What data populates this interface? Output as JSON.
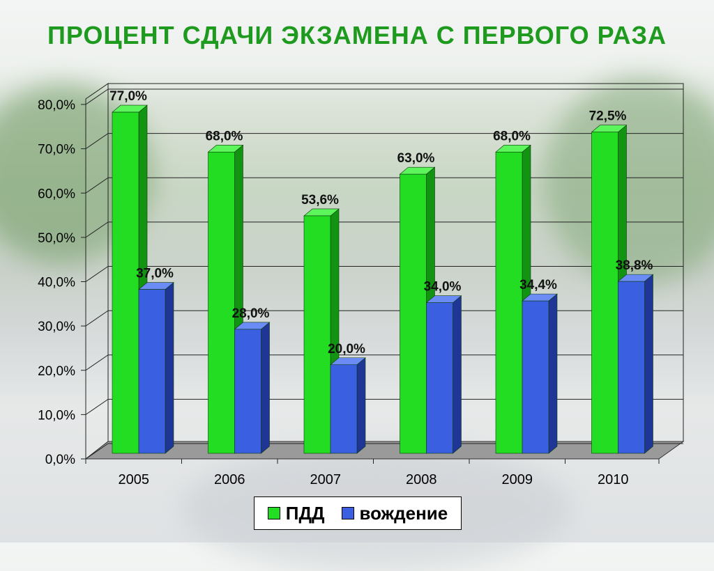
{
  "chart_data": {
    "type": "bar",
    "title": "ПРОЦЕНТ СДАЧИ ЭКЗАМЕНА С ПЕРВОГО РАЗА",
    "categories": [
      "2005",
      "2006",
      "2007",
      "2008",
      "2009",
      "2010"
    ],
    "series": [
      {
        "name": "ПДД",
        "values": [
          77.0,
          68.0,
          53.6,
          63.0,
          68.0,
          72.5
        ],
        "labels": [
          "77,0%",
          "68,0%",
          "53,6%",
          "63,0%",
          "68,0%",
          "72,5%"
        ],
        "color": "#22dd22"
      },
      {
        "name": "вождение",
        "values": [
          37.0,
          28.0,
          20.0,
          34.0,
          34.4,
          38.8
        ],
        "labels": [
          "37,0%",
          "28,0%",
          "20,0%",
          "34,0%",
          "34,4%",
          "38,8%"
        ],
        "color": "#3a5fe0"
      }
    ],
    "y_ticks": [
      "0,0%",
      "10,0%",
      "20,0%",
      "30,0%",
      "40,0%",
      "50,0%",
      "60,0%",
      "70,0%",
      "80,0%"
    ],
    "ylim": [
      0,
      80
    ],
    "grid": true,
    "legend_position": "bottom"
  }
}
